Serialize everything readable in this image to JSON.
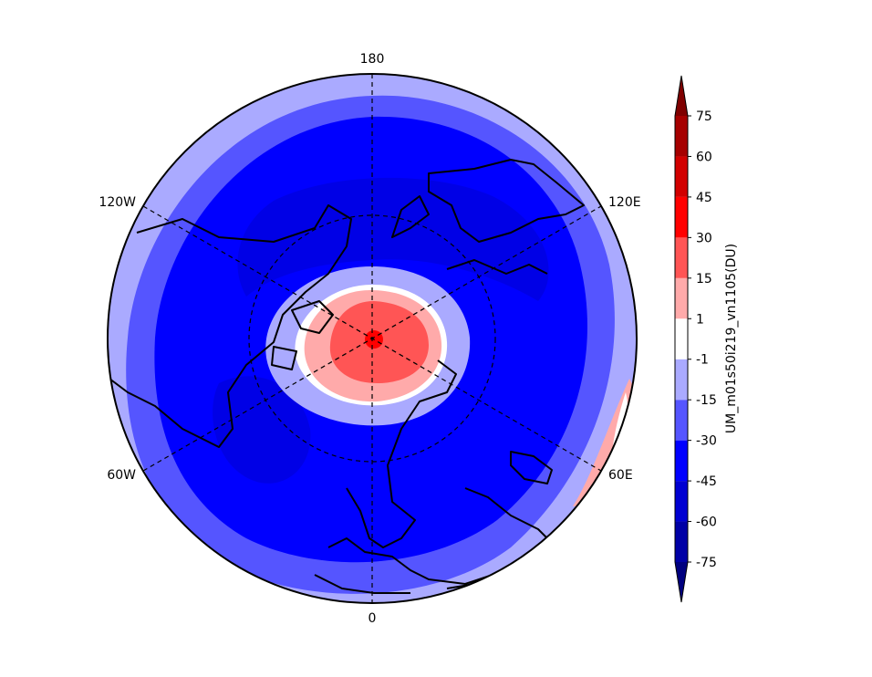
{
  "map": {
    "projection": "north-polar-stereographic",
    "longitude_labels": {
      "top": "180",
      "bottom": "0",
      "upper_left": "120W",
      "upper_right": "120E",
      "lower_left": "60W",
      "lower_right": "60E"
    },
    "field_pattern": [
      "central polar cap positive (pink to red, max near pole)",
      "surrounding ring slightly negative (light blue)",
      "broad mid-latitude belt strongly negative (-30 to -60, blue)",
      "outer rim moderately negative (light blue)"
    ]
  },
  "colorbar": {
    "label": "UM_m01s50i219_vn1105(DU)",
    "tick_labels": [
      "75",
      "60",
      "45",
      "30",
      "15",
      "1",
      "-1",
      "-15",
      "-30",
      "-45",
      "-60",
      "-75"
    ],
    "levels": [
      -75,
      -60,
      -45,
      -30,
      -15,
      -1,
      1,
      15,
      30,
      45,
      60,
      75
    ],
    "colors": {
      "under": "#00007f",
      "bins_low_to_high": [
        "#0000a6",
        "#0000d2",
        "#0000ff",
        "#5555ff",
        "#aaaaff",
        "#ffffff",
        "#ffaaaa",
        "#ff5555",
        "#ff0000",
        "#d20000",
        "#a60000"
      ],
      "over": "#7f0000"
    },
    "extend": "both"
  }
}
